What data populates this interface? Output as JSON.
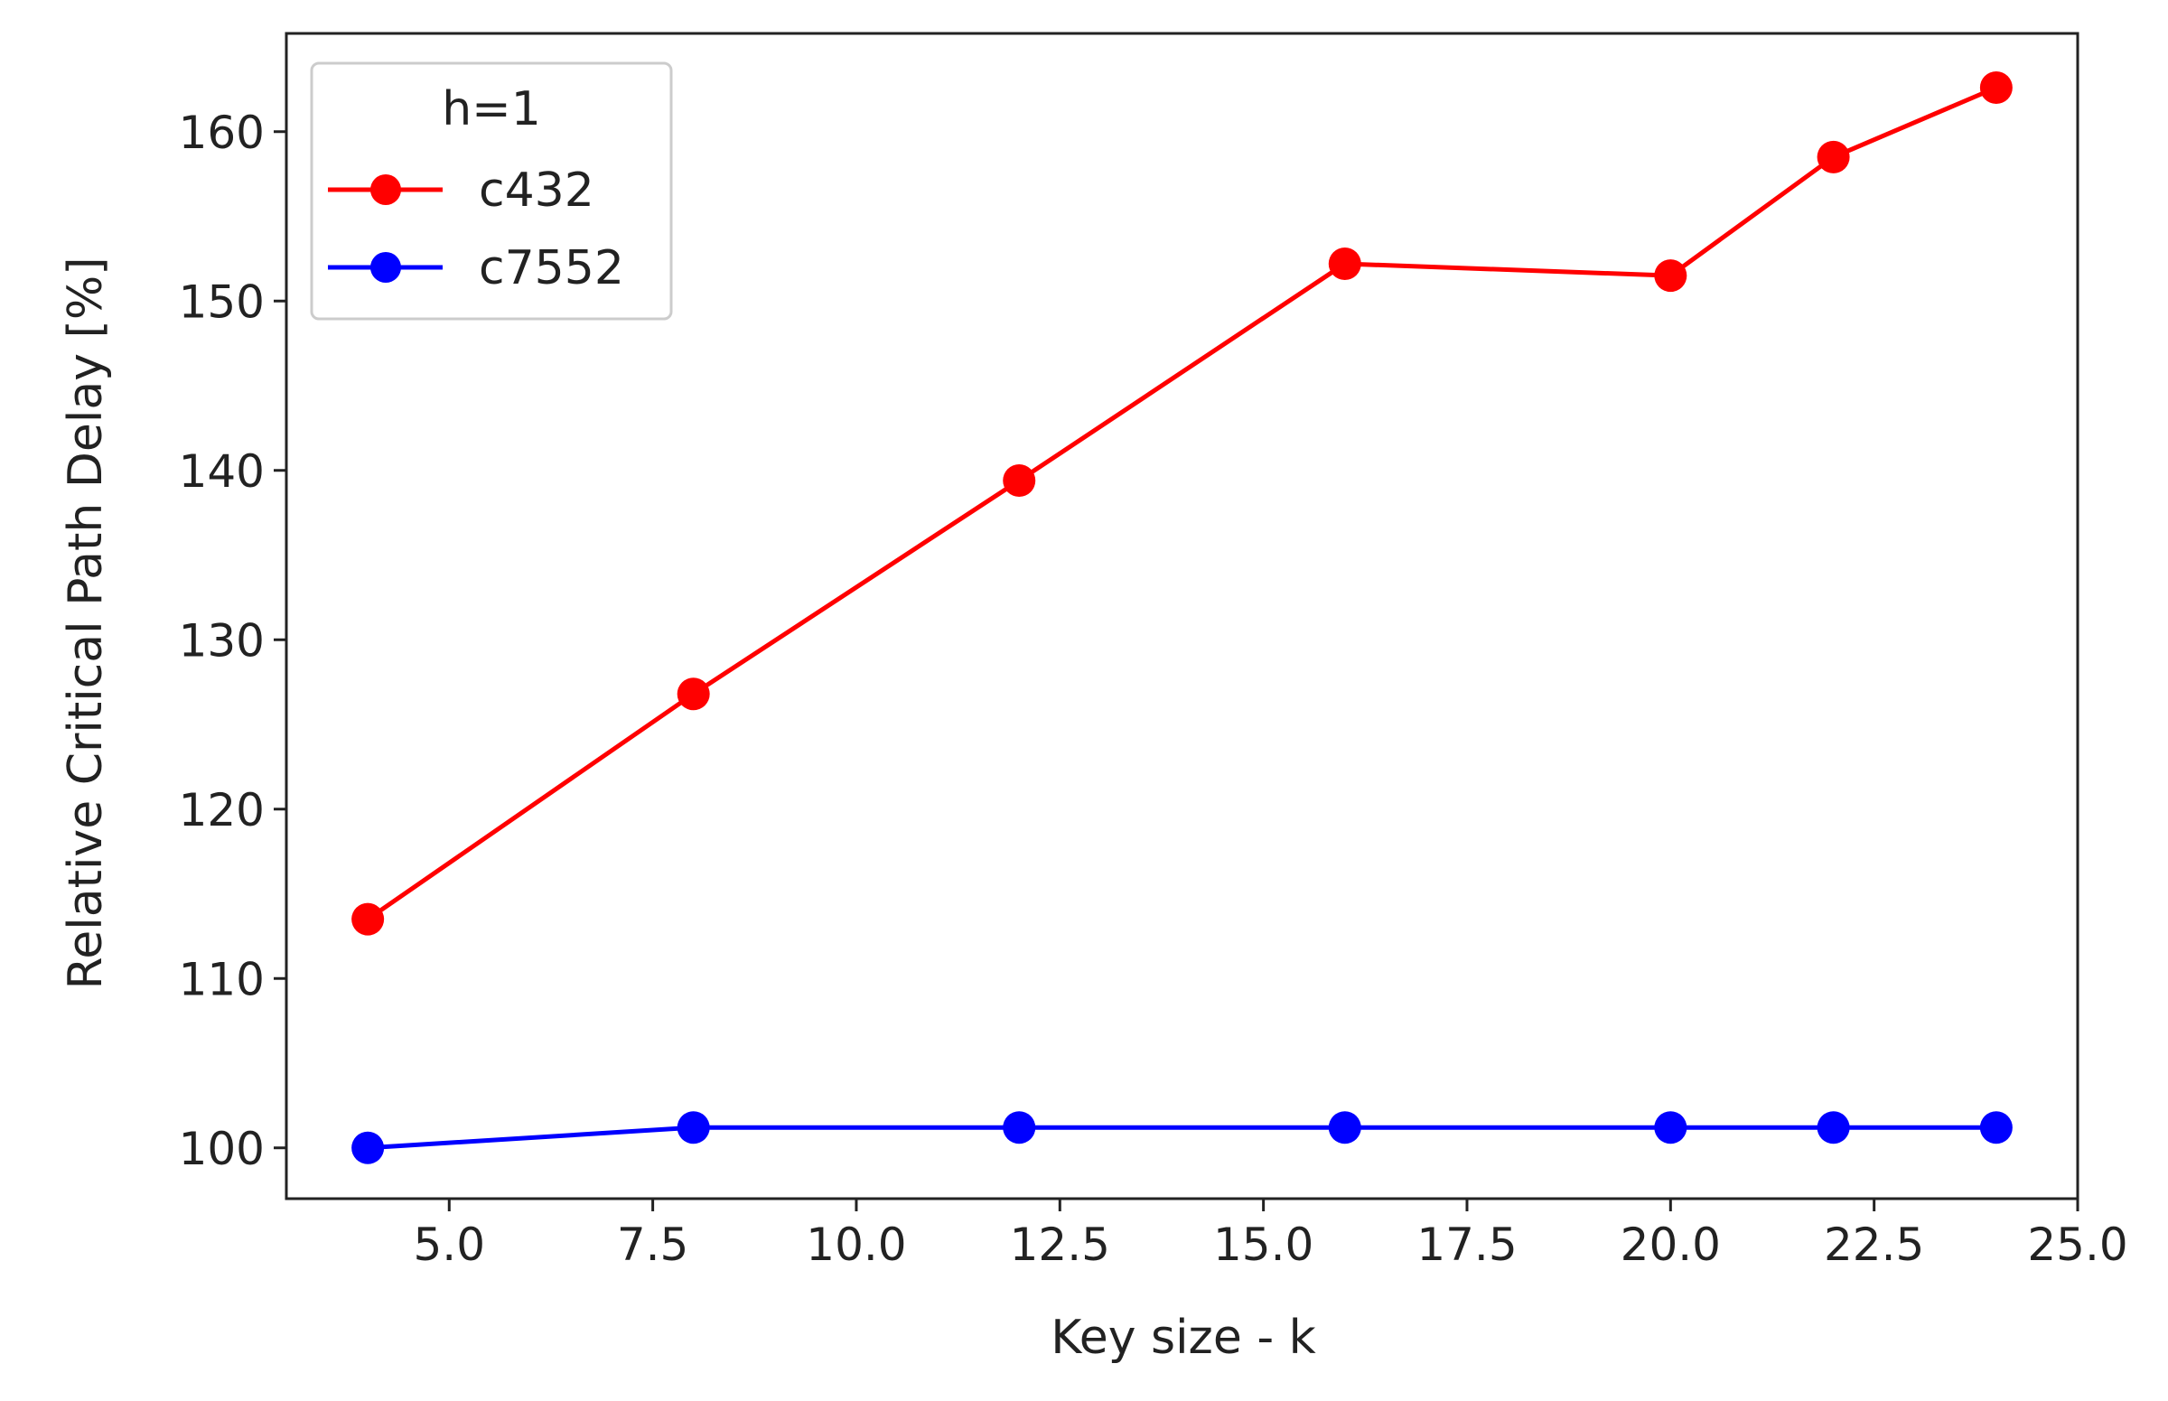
{
  "chart_data": {
    "type": "line",
    "title": "",
    "xlabel": "Key size - k",
    "ylabel": "Relative Critical Path Delay [%]",
    "xlim": [
      3.0,
      25.0
    ],
    "ylim": [
      97.0,
      165.8
    ],
    "xticks": [
      "5.0",
      "7.5",
      "10.0",
      "12.5",
      "15.0",
      "17.5",
      "20.0",
      "22.5",
      "25.0"
    ],
    "yticks": [
      "100",
      "110",
      "120",
      "130",
      "140",
      "150",
      "160"
    ],
    "grid": false,
    "legend": {
      "title": "h=1",
      "placement": "top-left"
    },
    "x": [
      4,
      8,
      12,
      16,
      20,
      22,
      24
    ],
    "series": [
      {
        "name": "c432",
        "color": "#ff0000",
        "values": [
          113.5,
          126.8,
          139.4,
          152.2,
          151.5,
          158.5,
          162.6
        ]
      },
      {
        "name": "c7552",
        "color": "#0000ff",
        "values": [
          100.0,
          101.2,
          101.2,
          101.2,
          101.2,
          101.2,
          101.2
        ]
      }
    ]
  }
}
